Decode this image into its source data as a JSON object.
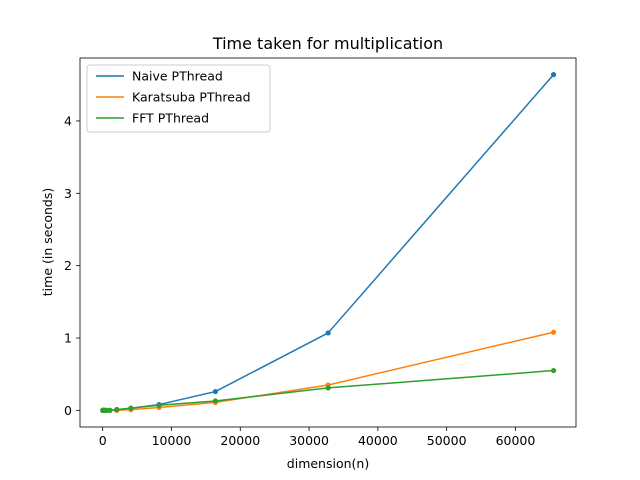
{
  "chart_data": {
    "type": "line",
    "title": "Time taken for multiplication",
    "xlabel": "dimension(n)",
    "ylabel": "time (in seconds)",
    "xlim": [
      -3300,
      68800
    ],
    "ylim": [
      -0.23,
      4.87
    ],
    "xticks": [
      0,
      10000,
      20000,
      30000,
      40000,
      50000,
      60000
    ],
    "yticks": [
      0,
      1,
      2,
      3,
      4
    ],
    "grid": false,
    "legend": "top-left",
    "x": [
      16,
      32,
      64,
      128,
      256,
      512,
      1024,
      2048,
      4096,
      8192,
      16384,
      32768,
      65536
    ],
    "series": [
      {
        "name": "Naive PThread",
        "color": "#1f77b4",
        "values": [
          0,
          0,
          0,
          0,
          0,
          0,
          0,
          0.01,
          0.03,
          0.08,
          0.26,
          1.07,
          4.64
        ]
      },
      {
        "name": "Karatsuba PThread",
        "color": "#ff7f0e",
        "values": [
          0,
          0,
          0,
          0,
          0,
          0,
          0,
          0,
          0.01,
          0.04,
          0.11,
          0.35,
          1.08
        ]
      },
      {
        "name": "FFT PThread",
        "color": "#2ca02c",
        "values": [
          0,
          0,
          0,
          0,
          0,
          0,
          0,
          0.01,
          0.03,
          0.07,
          0.13,
          0.31,
          0.55
        ]
      }
    ]
  }
}
